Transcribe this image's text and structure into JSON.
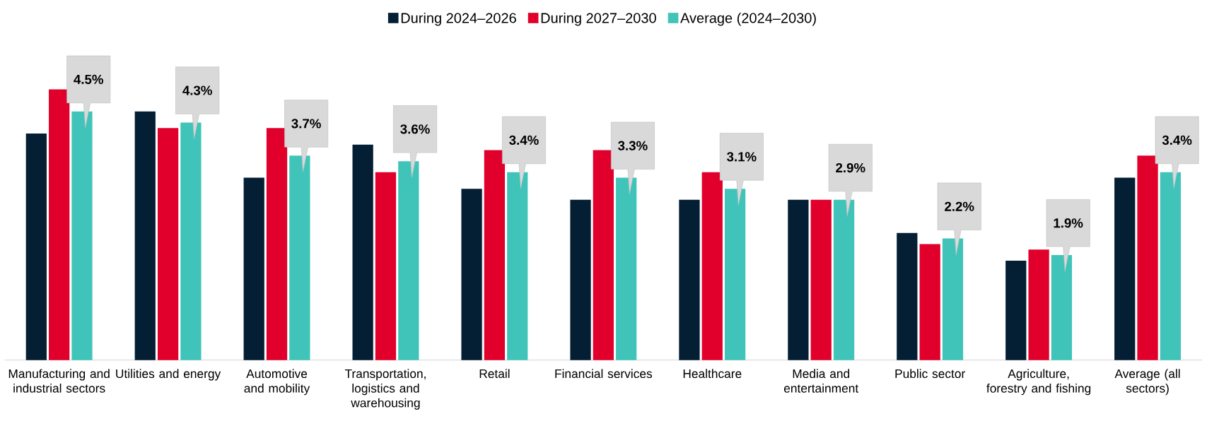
{
  "chart_data": {
    "type": "bar",
    "categories": [
      "Manufacturing and industrial sectors",
      "Utilities and energy",
      "Automotive and mobility",
      "Transportation, logistics and warehousing",
      "Retail",
      "Financial services",
      "Healthcare",
      "Media and entertainment",
      "Public sector",
      "Agriculture, forestry and fishing",
      "Average (all sectors)"
    ],
    "series": [
      {
        "name": "During 2024–2026",
        "color": "#041e34",
        "values": [
          4.1,
          4.5,
          3.3,
          3.9,
          3.1,
          2.9,
          2.9,
          2.9,
          2.3,
          1.8,
          3.3
        ]
      },
      {
        "name": "During 2027–2030",
        "color": "#e0002b",
        "values": [
          4.9,
          4.2,
          4.2,
          3.4,
          3.8,
          3.8,
          3.4,
          2.9,
          2.1,
          2.0,
          3.7
        ]
      },
      {
        "name": "Average (2024–2030)",
        "color": "#40c4b9",
        "values": [
          4.5,
          4.3,
          3.7,
          3.6,
          3.4,
          3.3,
          3.1,
          2.9,
          2.2,
          1.9,
          3.4
        ],
        "value_labels": [
          "4.5%",
          "4.3%",
          "3.7%",
          "3.6%",
          "3.4%",
          "3.3%",
          "3.1%",
          "2.9%",
          "2.2%",
          "1.9%",
          "3.4%"
        ]
      }
    ],
    "legend": "top"
  }
}
